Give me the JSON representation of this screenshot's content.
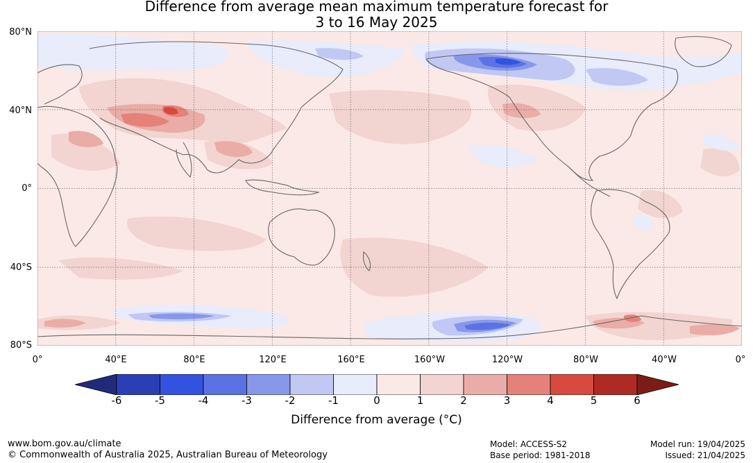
{
  "title": {
    "line1": "Difference from average mean maximum temperature forecast for",
    "line2": "3 to 16 May 2025"
  },
  "map": {
    "projection": "equirectangular",
    "background_color": "#fbe9e7",
    "latitude_labels": [
      "80°N",
      "40°N",
      "0°",
      "40°S",
      "80°S"
    ],
    "longitude_labels": [
      "0°",
      "40°E",
      "80°E",
      "120°E",
      "160°E",
      "160°W",
      "120°W",
      "80°W",
      "40°W",
      "0°"
    ],
    "grid": "dotted"
  },
  "legend": {
    "title": "Difference from average (°C)",
    "ticks": [
      "-6",
      "-5",
      "-4",
      "-3",
      "-2",
      "-1",
      "0",
      "1",
      "2",
      "3",
      "4",
      "5",
      "6"
    ],
    "colors": [
      "#1f2b7a",
      "#2b3fb5",
      "#3452e0",
      "#5b72e4",
      "#8797ea",
      "#c0c8f3",
      "#e8ecfb",
      "#fbe9e7",
      "#f2d4d0",
      "#eaaca6",
      "#e4827a",
      "#d84a3f",
      "#ae2b23",
      "#7b1d16"
    ]
  },
  "footer": {
    "website": "www.bom.gov.au/climate",
    "copyright": "© Commonwealth of Australia 2025, Australian Bureau of Meteorology",
    "model": "Model: ACCESS-S2",
    "base_period": "Base period: 1981-2018",
    "model_run": "Model run: 19/04/2025",
    "issued": "Issued: 21/04/2025"
  }
}
